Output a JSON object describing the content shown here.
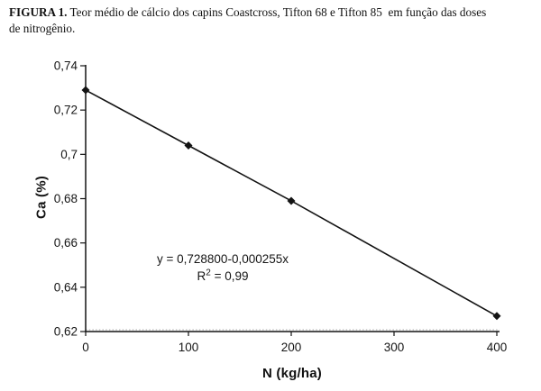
{
  "caption": {
    "label": "FIGURA 1.",
    "line1_rest": " Teor médio de cálcio dos capins Coastcross, Tifton 68 e Tifton 85  em função das doses",
    "line2": "de nitrogênio."
  },
  "chart_data": {
    "type": "line",
    "title": "",
    "xlabel": "N (kg/ha)",
    "ylabel": "Ca (%)",
    "x": [
      0,
      100,
      200,
      400
    ],
    "y": [
      0.729,
      0.704,
      0.679,
      0.627
    ],
    "xlim": [
      0,
      400
    ],
    "ylim": [
      0.62,
      0.74
    ],
    "x_ticks": {
      "values": [
        0,
        100,
        200,
        300,
        400
      ],
      "labels": [
        "0",
        "100",
        "200",
        "300",
        "400"
      ]
    },
    "y_ticks": {
      "values": [
        0.62,
        0.64,
        0.66,
        0.68,
        0.7,
        0.72,
        0.74
      ],
      "labels": [
        "0,62",
        "0,64",
        "0,66",
        "0,68",
        "0,7",
        "0,72",
        "0,74"
      ]
    },
    "grid": false,
    "legend": "none",
    "marker": "diamond",
    "line_color": "#131313",
    "axis_color": "#131313",
    "dotted_baseline_color": "#ababab",
    "annotation": {
      "equation": "y = 0,728800-0,000255x",
      "r2_base": "R",
      "r2_sup": "2",
      "r2_tail": " = 0,99"
    }
  }
}
